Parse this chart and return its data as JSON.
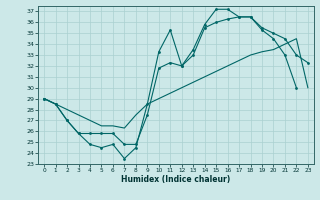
{
  "xlabel": "Humidex (Indice chaleur)",
  "bg_color": "#cce8e8",
  "line_color": "#006666",
  "grid_color": "#aad0d0",
  "xlim": [
    -0.5,
    23.5
  ],
  "ylim": [
    23,
    37.5
  ],
  "yticks": [
    23,
    24,
    25,
    26,
    27,
    28,
    29,
    30,
    31,
    32,
    33,
    34,
    35,
    36,
    37
  ],
  "xticks": [
    0,
    1,
    2,
    3,
    4,
    5,
    6,
    7,
    8,
    9,
    10,
    11,
    12,
    13,
    14,
    15,
    16,
    17,
    18,
    19,
    20,
    21,
    22,
    23
  ],
  "line1_x": [
    0,
    1,
    2,
    3,
    4,
    5,
    6,
    7,
    8,
    9,
    10,
    11,
    12,
    13,
    14,
    15,
    16,
    17,
    18,
    19,
    20,
    21,
    22
  ],
  "line1_y": [
    29,
    28.5,
    27,
    25.8,
    24.8,
    24.5,
    24.8,
    23.5,
    24.5,
    28.5,
    33.3,
    35.3,
    32,
    33.5,
    35.8,
    37.2,
    37.2,
    36.5,
    36.5,
    35.3,
    34.5,
    33.0,
    30
  ],
  "line2_x": [
    0,
    1,
    2,
    3,
    4,
    5,
    6,
    7,
    8,
    9,
    10,
    11,
    12,
    13,
    14,
    15,
    16,
    17,
    18,
    19,
    20,
    21,
    22,
    23
  ],
  "line2_y": [
    29,
    28.5,
    27,
    25.8,
    25.8,
    25.8,
    25.8,
    24.8,
    24.8,
    27.5,
    31.8,
    32.3,
    32,
    33,
    35.5,
    36,
    36.3,
    36.5,
    36.5,
    35.5,
    35.0,
    34.5,
    33,
    32.3
  ],
  "line3_x": [
    0,
    1,
    2,
    3,
    4,
    5,
    6,
    7,
    8,
    9,
    10,
    11,
    12,
    13,
    14,
    15,
    16,
    17,
    18,
    19,
    20,
    21,
    22,
    23
  ],
  "line3_y": [
    29,
    28.5,
    28,
    27.5,
    27,
    26.5,
    26.5,
    26.3,
    27.5,
    28.5,
    29,
    29.5,
    30,
    30.5,
    31,
    31.5,
    32,
    32.5,
    33,
    33.3,
    33.5,
    34,
    34.5,
    30
  ]
}
